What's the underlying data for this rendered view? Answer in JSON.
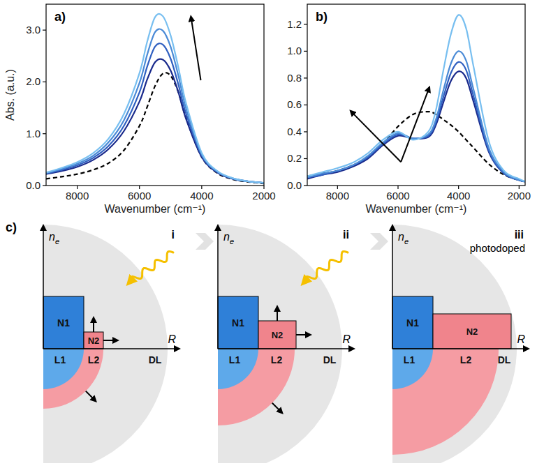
{
  "chart_data": [
    {
      "type": "line",
      "title": "a)",
      "xlabel": "Wavenumber (cm⁻¹)",
      "ylabel": "Abs. (a.u.)",
      "x": [
        9000,
        8500,
        8000,
        7500,
        7000,
        6500,
        6000,
        5750,
        5500,
        5250,
        5000,
        4750,
        4500,
        4000,
        3500,
        3000,
        2500,
        2000
      ],
      "xlim": [
        9000,
        2000
      ],
      "xticks": [
        8000,
        6000,
        4000,
        2000
      ],
      "ylim": [
        0,
        3.5
      ],
      "yticks": [
        {
          "value": 0,
          "label": "0.0"
        },
        {
          "value": 1,
          "label": "1.0"
        },
        {
          "value": 2,
          "label": "2.0"
        },
        {
          "value": 3,
          "label": "3.0"
        }
      ],
      "grid": false,
      "series": [
        {
          "color": "#000000",
          "line_style": "dashed",
          "values": [
            0.13,
            0.17,
            0.22,
            0.3,
            0.43,
            0.68,
            1.15,
            1.52,
            1.92,
            2.16,
            2.12,
            1.8,
            1.3,
            0.55,
            0.24,
            0.12,
            0.07,
            0.04
          ]
        },
        {
          "color": "#1a2a8c",
          "line_style": "solid",
          "values": [
            0.22,
            0.28,
            0.36,
            0.49,
            0.7,
            1.05,
            1.62,
            2.05,
            2.38,
            2.43,
            2.22,
            1.8,
            1.28,
            0.55,
            0.25,
            0.13,
            0.08,
            0.05
          ]
        },
        {
          "color": "#2f5fc0",
          "line_style": "solid",
          "values": [
            0.23,
            0.3,
            0.39,
            0.53,
            0.76,
            1.15,
            1.8,
            2.3,
            2.68,
            2.72,
            2.45,
            1.95,
            1.38,
            0.58,
            0.26,
            0.13,
            0.08,
            0.05
          ]
        },
        {
          "color": "#4a8ad6",
          "line_style": "solid",
          "values": [
            0.24,
            0.32,
            0.42,
            0.57,
            0.83,
            1.26,
            1.98,
            2.53,
            2.96,
            2.99,
            2.68,
            2.12,
            1.48,
            0.6,
            0.27,
            0.14,
            0.08,
            0.05
          ]
        },
        {
          "color": "#78bff0",
          "line_style": "solid",
          "values": [
            0.25,
            0.34,
            0.45,
            0.62,
            0.9,
            1.38,
            2.17,
            2.78,
            3.25,
            3.27,
            2.9,
            2.28,
            1.58,
            0.63,
            0.28,
            0.14,
            0.08,
            0.05
          ]
        }
      ]
    },
    {
      "type": "line",
      "title": "b)",
      "xlabel": "Wavenumber (cm⁻¹)",
      "x": [
        9000,
        8500,
        8000,
        7500,
        7000,
        6500,
        6000,
        5500,
        5000,
        4750,
        4500,
        4250,
        4000,
        3750,
        3500,
        3000,
        2500,
        2000,
        1800
      ],
      "xlim": [
        9000,
        1800
      ],
      "xticks": [
        8000,
        6000,
        4000,
        2000
      ],
      "ylim": [
        0,
        1.35
      ],
      "yticks": [
        {
          "value": 0,
          "label": "0.0"
        },
        {
          "value": 0.2,
          "label": "0.2"
        },
        {
          "value": 0.4,
          "label": "0.4"
        },
        {
          "value": 0.6,
          "label": "0.6"
        },
        {
          "value": 0.8,
          "label": "0.8"
        },
        {
          "value": 1,
          "label": "1.0"
        },
        {
          "value": 1.2,
          "label": "1.2"
        }
      ],
      "grid": false,
      "series": [
        {
          "color": "#000000",
          "line_style": "dashed",
          "values": [
            0.07,
            0.09,
            0.11,
            0.15,
            0.21,
            0.31,
            0.44,
            0.53,
            0.55,
            0.53,
            0.49,
            0.45,
            0.4,
            0.34,
            0.28,
            0.16,
            0.08,
            0.04,
            0.03
          ]
        },
        {
          "color": "#1a2a8c",
          "line_style": "solid",
          "values": [
            0.05,
            0.08,
            0.1,
            0.14,
            0.2,
            0.3,
            0.37,
            0.35,
            0.36,
            0.45,
            0.62,
            0.78,
            0.85,
            0.8,
            0.62,
            0.25,
            0.09,
            0.04,
            0.03
          ]
        },
        {
          "color": "#2f5fc0",
          "line_style": "solid",
          "values": [
            0.06,
            0.08,
            0.11,
            0.15,
            0.21,
            0.31,
            0.38,
            0.35,
            0.37,
            0.47,
            0.66,
            0.84,
            0.92,
            0.86,
            0.66,
            0.26,
            0.09,
            0.04,
            0.03
          ]
        },
        {
          "color": "#4a8ad6",
          "line_style": "solid",
          "values": [
            0.06,
            0.09,
            0.11,
            0.15,
            0.22,
            0.32,
            0.39,
            0.35,
            0.38,
            0.49,
            0.71,
            0.91,
            1.0,
            0.93,
            0.71,
            0.28,
            0.1,
            0.04,
            0.03
          ]
        },
        {
          "color": "#78bff0",
          "line_style": "solid",
          "values": [
            0.07,
            0.1,
            0.13,
            0.17,
            0.24,
            0.34,
            0.4,
            0.34,
            0.4,
            0.56,
            0.86,
            1.13,
            1.27,
            1.17,
            0.88,
            0.33,
            0.11,
            0.05,
            0.03
          ]
        }
      ]
    }
  ],
  "diagram": {
    "label": "c)",
    "panels": [
      {
        "numeral": "i",
        "illuminated": true,
        "y_axis": {
          "symbol": "n",
          "subscript": "e"
        },
        "x_axis": "R",
        "bars": [
          "N1",
          "N2"
        ],
        "layers": [
          "L1",
          "L2",
          "DL"
        ]
      },
      {
        "numeral": "ii",
        "illuminated": true,
        "y_axis": {
          "symbol": "n",
          "subscript": "e"
        },
        "x_axis": "R",
        "bars": [
          "N1",
          "N2"
        ],
        "layers": [
          "L1",
          "L2",
          "DL"
        ]
      },
      {
        "numeral": "iii",
        "caption": "photodoped",
        "illuminated": false,
        "y_axis": {
          "symbol": "n",
          "subscript": "e"
        },
        "x_axis": "R",
        "bars": [
          "N1",
          "N2"
        ],
        "layers": [
          "L1",
          "L2",
          "DL"
        ]
      }
    ]
  }
}
